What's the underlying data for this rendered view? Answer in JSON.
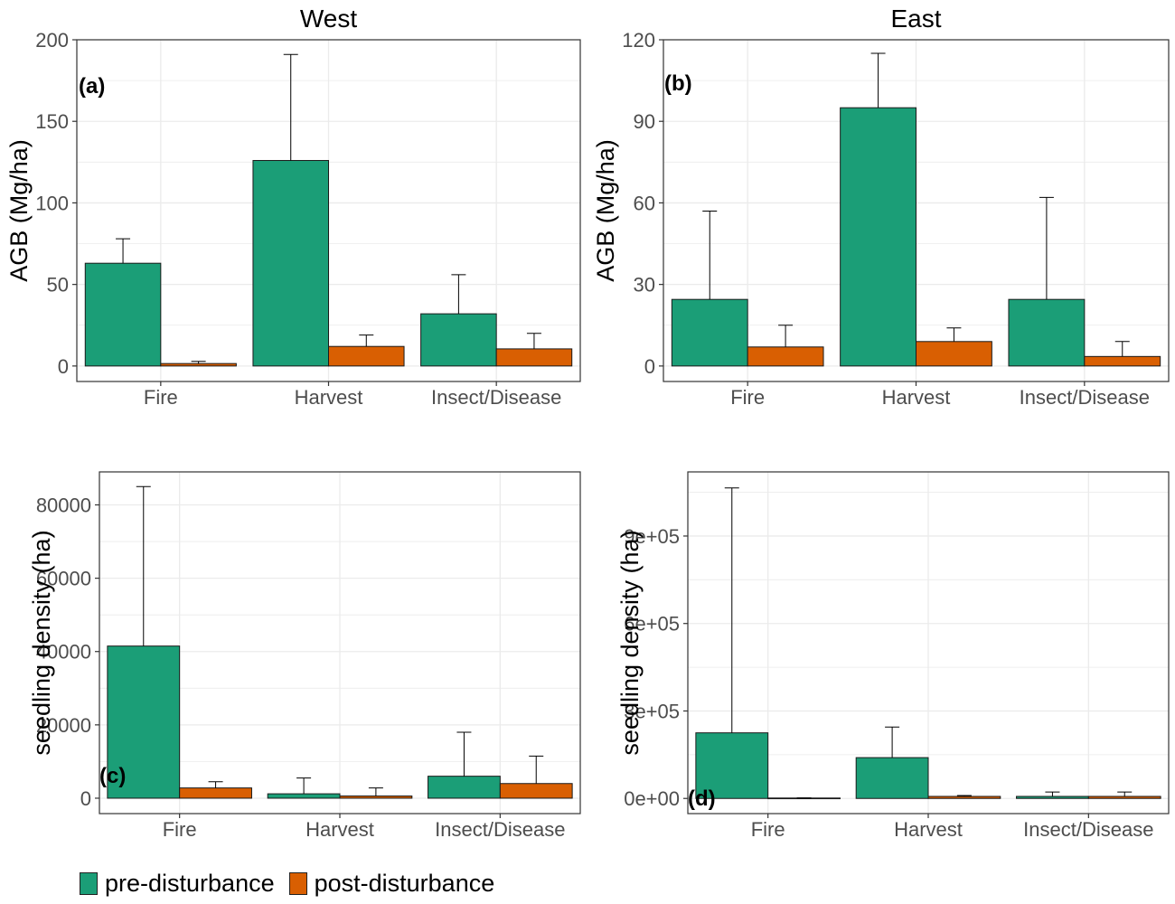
{
  "colors": {
    "pre": "#1b9e77",
    "post": "#d95f02",
    "grid": "#ebebeb",
    "axis_text": "#4d4d4d"
  },
  "legend": {
    "position": "bottom-left",
    "items": [
      {
        "label": "pre-disturbance",
        "color": "#1b9e77"
      },
      {
        "label": "post-disturbance",
        "color": "#d95f02"
      }
    ]
  },
  "chart_data": [
    {
      "type": "bar",
      "title": "West",
      "panel_label": "(a)",
      "ylabel": "AGB (Mg/ha)",
      "xlabel": "",
      "categories": [
        "Fire",
        "Harvest",
        "Insect/Disease"
      ],
      "ylim": [
        -9.5,
        200
      ],
      "yticks": [
        0,
        50,
        100,
        150,
        200
      ],
      "tick_labels": [
        "0",
        "50",
        "100",
        "150",
        "200"
      ],
      "grid": true,
      "series": [
        {
          "name": "pre-disturbance",
          "values": [
            63,
            126,
            32
          ],
          "error_upper": [
            78,
            191,
            56
          ]
        },
        {
          "name": "post-disturbance",
          "values": [
            1.5,
            12,
            10.5
          ],
          "error_upper": [
            2.8,
            19,
            20
          ]
        }
      ]
    },
    {
      "type": "bar",
      "title": "East",
      "panel_label": "(b)",
      "ylabel": "AGB (Mg/ha)",
      "xlabel": "",
      "categories": [
        "Fire",
        "Harvest",
        "Insect/Disease"
      ],
      "ylim": [
        -5.7,
        120
      ],
      "yticks": [
        0,
        30,
        60,
        90,
        120
      ],
      "tick_labels": [
        "0",
        "30",
        "60",
        "90",
        "120"
      ],
      "grid": true,
      "series": [
        {
          "name": "pre-disturbance",
          "values": [
            24.5,
            95,
            24.5
          ],
          "error_upper": [
            57,
            115,
            62
          ]
        },
        {
          "name": "post-disturbance",
          "values": [
            7,
            9,
            3.5
          ],
          "error_upper": [
            15,
            14,
            9
          ]
        }
      ]
    },
    {
      "type": "bar",
      "title": "",
      "panel_label": "(c)",
      "ylabel": "seedling density (ha)",
      "xlabel": "",
      "categories": [
        "Fire",
        "Harvest",
        "Insect/Disease"
      ],
      "ylim": [
        -4200,
        89000
      ],
      "yticks": [
        0,
        20000,
        40000,
        60000,
        80000
      ],
      "tick_labels": [
        "0",
        "20000",
        "40000",
        "60000",
        "80000"
      ],
      "grid": true,
      "series": [
        {
          "name": "pre-disturbance",
          "values": [
            41500,
            1200,
            6000
          ],
          "error_upper": [
            85000,
            5500,
            18000
          ]
        },
        {
          "name": "post-disturbance",
          "values": [
            2800,
            600,
            4000
          ],
          "error_upper": [
            4500,
            2800,
            11500
          ]
        }
      ]
    },
    {
      "type": "bar",
      "title": "",
      "panel_label": "(d)",
      "ylabel": "seedling density (ha)",
      "xlabel": "",
      "categories": [
        "Fire",
        "Harvest",
        "Insect/Disease"
      ],
      "ylim": [
        -52000,
        1120000
      ],
      "yticks": [
        0,
        300000,
        600000,
        900000
      ],
      "tick_labels": [
        "0e+00",
        "3e+05",
        "6e+05",
        "9e+05"
      ],
      "grid": true,
      "series": [
        {
          "name": "pre-disturbance",
          "values": [
            225000,
            140000,
            7000
          ],
          "error_upper": [
            1065000,
            245000,
            22000
          ]
        },
        {
          "name": "post-disturbance",
          "values": [
            1500,
            7000,
            7000
          ],
          "error_upper": [
            2000,
            10000,
            22000
          ]
        }
      ]
    }
  ]
}
